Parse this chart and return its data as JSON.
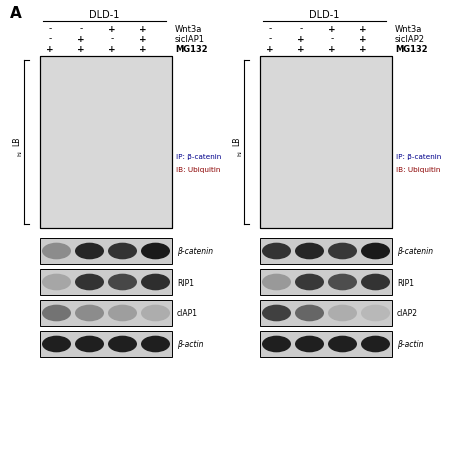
{
  "title_label": "A",
  "panel1": {
    "cell_line": "DLD-1",
    "conditions": {
      "Wnt3a": [
        "-",
        "-",
        "+",
        "+"
      ],
      "sicIAP1": [
        "-",
        "+",
        "-",
        "+"
      ],
      "MG132": [
        "+",
        "+",
        "+",
        "+"
      ]
    },
    "ip_label": "IP: β-catenin",
    "ib_label": "IB: Ubiquitin",
    "wb_labels": [
      "β-catenin",
      "RIP1",
      "cIAP1",
      "β-actin"
    ],
    "lb_label": "LB"
  },
  "panel2": {
    "cell_line": "DLD-1",
    "conditions": {
      "Wnt3a": [
        "-",
        "-",
        "+",
        "+"
      ],
      "sicIAP2": [
        "-",
        "+",
        "-",
        "+"
      ],
      "MG132": [
        "+",
        "+",
        "+",
        "+"
      ]
    },
    "ip_label": "IP: β-catenin",
    "ib_label": "IB: Ubiquitin",
    "wb_labels": [
      "β-catenin",
      "RIP1",
      "cIAP2",
      "β-actin"
    ],
    "lb_label": "LB"
  },
  "bg_color": "#ffffff",
  "text_color": "#000000",
  "ip_color": "#00008B",
  "ib_color": "#8B0000",
  "panel1_main_lanes": [
    {
      "dark": 0.04,
      "gradient": true,
      "has_bright": true
    },
    {
      "dark": 0.45,
      "gradient": true,
      "has_bright": false
    },
    {
      "dark": 0.72,
      "gradient": false,
      "has_bright": false
    },
    {
      "dark": 0.9,
      "gradient": false,
      "has_bright": false
    }
  ],
  "panel2_main_lanes": [
    {
      "dark": 0.04,
      "gradient": true,
      "has_bright": true
    },
    {
      "dark": 0.2,
      "gradient": true,
      "has_bright": false
    },
    {
      "dark": 0.7,
      "gradient": false,
      "has_bright": false
    },
    {
      "dark": 0.88,
      "gradient": false,
      "has_bright": false
    }
  ],
  "panel1_wb": {
    "β-catenin": [
      0.55,
      0.15,
      0.2,
      0.1
    ],
    "RIP1": [
      0.65,
      0.2,
      0.28,
      0.18
    ],
    "cIAP1": [
      0.45,
      0.55,
      0.62,
      0.68
    ],
    "β-actin": [
      0.12,
      0.12,
      0.12,
      0.12
    ]
  },
  "panel2_wb": {
    "β-catenin": [
      0.2,
      0.15,
      0.22,
      0.1
    ],
    "RIP1": [
      0.6,
      0.22,
      0.3,
      0.2
    ],
    "cIAP2": [
      0.25,
      0.4,
      0.68,
      0.72
    ],
    "β-actin": [
      0.12,
      0.12,
      0.12,
      0.12
    ]
  }
}
